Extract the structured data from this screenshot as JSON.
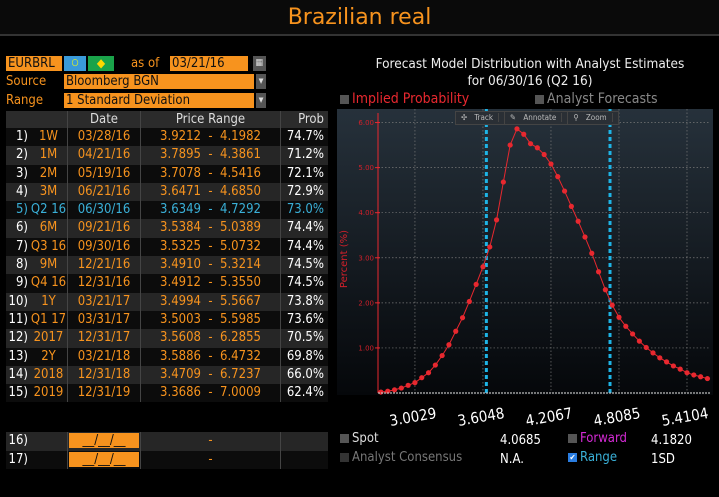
{
  "title": "Brazilian real",
  "controls": {
    "ticker": "EURBRL",
    "as_of_label": "as of",
    "as_of_date": "03/21/16",
    "source_label": "Source",
    "source_value": "Bloomberg BGN",
    "range_label": "Range",
    "range_value": "1 Standard Deviation"
  },
  "table": {
    "headers": [
      "",
      "",
      "Date",
      "Price Range",
      "Prob"
    ],
    "rows": [
      {
        "n": "1)",
        "tenor": "1W",
        "date": "03/28/16",
        "range": "3.9212  -  4.1982",
        "prob": "74.7%"
      },
      {
        "n": "2)",
        "tenor": "1M",
        "date": "04/21/16",
        "range": "3.7895  -  4.3861",
        "prob": "71.2%"
      },
      {
        "n": "3)",
        "tenor": "2M",
        "date": "05/19/16",
        "range": "3.7078  -  4.5416",
        "prob": "72.1%"
      },
      {
        "n": "4)",
        "tenor": "3M",
        "date": "06/21/16",
        "range": "3.6471  -  4.6850",
        "prob": "72.9%"
      },
      {
        "n": "5)",
        "tenor": "Q2 16",
        "date": "06/30/16",
        "range": "3.6349  -  4.7292",
        "prob": "73.0%",
        "selected": true
      },
      {
        "n": "6)",
        "tenor": "6M",
        "date": "09/21/16",
        "range": "3.5384  -  5.0389",
        "prob": "74.4%"
      },
      {
        "n": "7)",
        "tenor": "Q3 16",
        "date": "09/30/16",
        "range": "3.5325  -  5.0732",
        "prob": "74.4%"
      },
      {
        "n": "8)",
        "tenor": "9M",
        "date": "12/21/16",
        "range": "3.4910  -  5.3214",
        "prob": "74.5%"
      },
      {
        "n": "9)",
        "tenor": "Q4 16",
        "date": "12/31/16",
        "range": "3.4912  -  5.3550",
        "prob": "74.5%"
      },
      {
        "n": "10)",
        "tenor": "1Y",
        "date": "03/21/17",
        "range": "3.4994  -  5.5667",
        "prob": "73.8%"
      },
      {
        "n": "11)",
        "tenor": "Q1 17",
        "date": "03/31/17",
        "range": "3.5003  -  5.5985",
        "prob": "73.6%"
      },
      {
        "n": "12)",
        "tenor": "2017",
        "date": "12/31/17",
        "range": "3.5608  -  6.2855",
        "prob": "70.5%"
      },
      {
        "n": "13)",
        "tenor": "2Y",
        "date": "03/21/18",
        "range": "3.5886  -  6.4732",
        "prob": "69.8%"
      },
      {
        "n": "14)",
        "tenor": "2018",
        "date": "12/31/18",
        "range": "3.4709  -  6.7237",
        "prob": "66.0%"
      },
      {
        "n": "15)",
        "tenor": "2019",
        "date": "12/31/19",
        "range": "3.3686  -  7.0009",
        "prob": "62.4%"
      }
    ],
    "custom_rows": [
      {
        "n": "16)",
        "date": "__/__/__",
        "range": "-"
      },
      {
        "n": "17)",
        "date": "__/__/__",
        "range": "-"
      }
    ]
  },
  "chart_title_line1": "Forecast Model Distribution with Analyst Estimates",
  "chart_title_line2": "for  06/30/16 (Q2 16)",
  "legend": {
    "implied": "Implied Probability",
    "analyst": "Analyst Forecasts"
  },
  "toolbar": {
    "track": "Track",
    "annotate": "Annotate",
    "zoom": "Zoom"
  },
  "chart_data": {
    "type": "line",
    "ylabel": "Percent (%)",
    "yticks": [
      "1.00",
      "2.00",
      "3.00",
      "4.00",
      "5.00",
      "6.00"
    ],
    "ylim": [
      0,
      6.3
    ],
    "xlim": [
      2.676,
      5.614
    ],
    "xticks": [
      "3.0029",
      "3.6048",
      "4.2067",
      "4.8085",
      "5.4104"
    ],
    "grid": true,
    "series_color": "#e8282f",
    "range_lines": [
      3.6349,
      4.7292
    ],
    "range_color": "#1eb4e6",
    "x": [
      2.7019,
      2.7621,
      2.8223,
      2.8825,
      2.9427,
      3.0029,
      3.0631,
      3.1233,
      3.1835,
      3.2436,
      3.3038,
      3.364,
      3.4242,
      3.4844,
      3.5446,
      3.6048,
      3.665,
      3.7252,
      3.7854,
      3.8456,
      3.9058,
      3.9659,
      4.0261,
      4.0863,
      4.1465,
      4.2067,
      4.2669,
      4.3271,
      4.3873,
      4.4475,
      4.5077,
      4.5678,
      4.628,
      4.6882,
      4.7484,
      4.8086,
      4.8688,
      4.929,
      4.9892,
      5.0494,
      5.1096,
      5.1697,
      5.2299,
      5.2901,
      5.3503,
      5.4105,
      5.4707,
      5.5309,
      5.5911
    ],
    "y": [
      0.02,
      0.04,
      0.07,
      0.11,
      0.17,
      0.23,
      0.34,
      0.45,
      0.62,
      0.83,
      1.07,
      1.37,
      1.67,
      2.03,
      2.41,
      2.8,
      3.24,
      3.84,
      4.68,
      5.5,
      5.86,
      5.74,
      5.53,
      5.44,
      5.29,
      5.08,
      4.8,
      4.48,
      4.14,
      3.81,
      3.46,
      3.1,
      2.69,
      2.29,
      1.95,
      1.68,
      1.48,
      1.31,
      1.15,
      1.01,
      0.89,
      0.78,
      0.69,
      0.6,
      0.53,
      0.45,
      0.4,
      0.36,
      0.32
    ]
  },
  "bottom": {
    "spot_label": "Spot",
    "spot_value": "4.0685",
    "forward_label": "Forward",
    "forward_value": "4.1820",
    "consensus_label": "Analyst Consensus",
    "consensus_value": "N.A.",
    "range_label": "Range",
    "range_value": "1SD"
  }
}
